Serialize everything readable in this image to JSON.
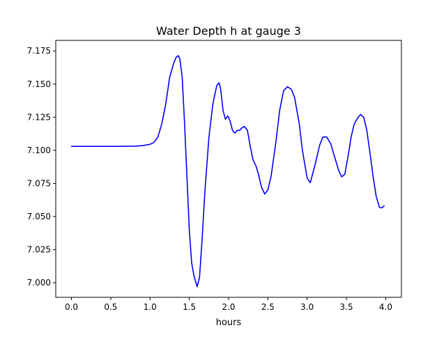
{
  "chart_data": {
    "type": "line",
    "title": "Water Depth h at gauge 3",
    "xlabel": "hours",
    "ylabel": "",
    "xlim": [
      -0.2,
      4.2
    ],
    "ylim": [
      6.989,
      7.183
    ],
    "xticks": [
      0.0,
      0.5,
      1.0,
      1.5,
      2.0,
      2.5,
      3.0,
      3.5,
      4.0
    ],
    "xtick_labels": [
      "0.0",
      "0.5",
      "1.0",
      "1.5",
      "2.0",
      "2.5",
      "3.0",
      "3.5",
      "4.0"
    ],
    "yticks": [
      7.0,
      7.025,
      7.05,
      7.075,
      7.1,
      7.125,
      7.15,
      7.175
    ],
    "ytick_labels": [
      "7.000",
      "7.025",
      "7.050",
      "7.075",
      "7.100",
      "7.125",
      "7.150",
      "7.175"
    ],
    "grid": false,
    "series": [
      {
        "color": "#0000ff",
        "x": [
          0.0,
          0.2,
          0.4,
          0.6,
          0.8,
          0.9,
          1.0,
          1.05,
          1.1,
          1.15,
          1.2,
          1.25,
          1.3,
          1.33,
          1.36,
          1.38,
          1.41,
          1.44,
          1.47,
          1.5,
          1.53,
          1.56,
          1.6,
          1.63,
          1.66,
          1.7,
          1.75,
          1.8,
          1.85,
          1.88,
          1.9,
          1.93,
          1.96,
          1.99,
          2.02,
          2.05,
          2.08,
          2.11,
          2.14,
          2.17,
          2.2,
          2.24,
          2.27,
          2.31,
          2.35,
          2.38,
          2.42,
          2.46,
          2.5,
          2.54,
          2.6,
          2.65,
          2.7,
          2.75,
          2.8,
          2.84,
          2.9,
          2.94,
          3.0,
          3.04,
          3.1,
          3.16,
          3.2,
          3.25,
          3.3,
          3.35,
          3.4,
          3.44,
          3.48,
          3.52,
          3.56,
          3.6,
          3.65,
          3.68,
          3.72,
          3.76,
          3.8,
          3.84,
          3.88,
          3.92,
          3.95,
          3.98
        ],
        "values": [
          7.103,
          7.103,
          7.103,
          7.103,
          7.1031,
          7.1035,
          7.1045,
          7.106,
          7.11,
          7.12,
          7.135,
          7.155,
          7.1655,
          7.17,
          7.1715,
          7.169,
          7.155,
          7.12,
          7.08,
          7.04,
          7.015,
          7.005,
          6.997,
          7.004,
          7.03,
          7.07,
          7.11,
          7.135,
          7.149,
          7.151,
          7.146,
          7.13,
          7.1235,
          7.126,
          7.122,
          7.115,
          7.113,
          7.115,
          7.115,
          7.117,
          7.118,
          7.115,
          7.105,
          7.093,
          7.088,
          7.082,
          7.072,
          7.067,
          7.07,
          7.08,
          7.105,
          7.13,
          7.145,
          7.148,
          7.146,
          7.14,
          7.12,
          7.1,
          7.079,
          7.0755,
          7.089,
          7.104,
          7.11,
          7.11,
          7.105,
          7.095,
          7.085,
          7.08,
          7.082,
          7.095,
          7.11,
          7.12,
          7.125,
          7.127,
          7.125,
          7.115,
          7.098,
          7.08,
          7.065,
          7.057,
          7.0565,
          7.058
        ]
      }
    ]
  }
}
